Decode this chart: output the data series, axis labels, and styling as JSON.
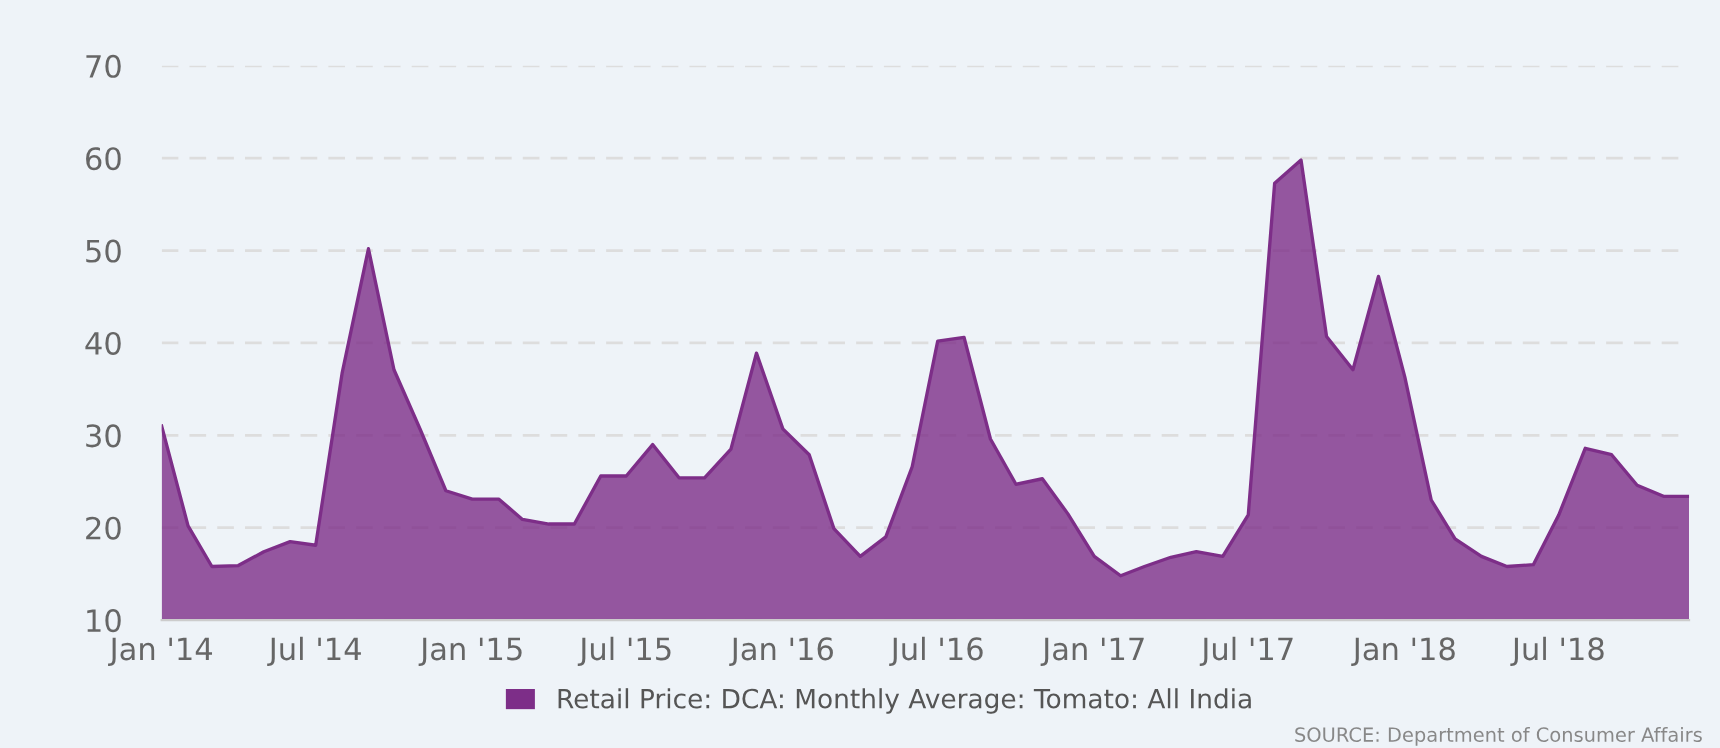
{
  "chart_data": {
    "type": "area",
    "x": [
      "2014-01",
      "2014-02",
      "2014-03",
      "2014-04",
      "2014-05",
      "2014-06",
      "2014-07",
      "2014-08",
      "2014-09",
      "2014-10",
      "2014-11",
      "2014-12",
      "2015-01",
      "2015-02",
      "2015-03",
      "2015-04",
      "2015-05",
      "2015-06",
      "2015-07",
      "2015-08",
      "2015-09",
      "2015-10",
      "2015-11",
      "2015-12",
      "2016-01",
      "2016-02",
      "2016-03",
      "2016-04",
      "2016-05",
      "2016-06",
      "2016-07",
      "2016-08",
      "2016-09",
      "2016-10",
      "2016-11",
      "2016-12",
      "2017-01",
      "2017-02",
      "2017-03",
      "2017-04",
      "2017-05",
      "2017-06",
      "2017-07",
      "2017-08",
      "2017-09",
      "2017-10",
      "2017-11",
      "2017-12",
      "2018-01",
      "2018-02",
      "2018-03",
      "2018-04",
      "2018-05",
      "2018-06",
      "2018-07",
      "2018-08",
      "2018-09",
      "2018-10",
      "2018-11",
      "2018-12"
    ],
    "series": [
      {
        "name": "Retail Price: DCA: Monthly Average: Tomato: All India",
        "color": "#7d2e88",
        "values": [
          31.0,
          20.2,
          15.8,
          15.9,
          17.4,
          18.5,
          18.1,
          36.7,
          50.2,
          37.1,
          30.6,
          24.0,
          23.1,
          23.1,
          20.9,
          20.4,
          20.4,
          25.6,
          25.6,
          29.0,
          25.4,
          25.4,
          28.5,
          38.9,
          30.7,
          27.9,
          19.9,
          16.9,
          19.0,
          26.6,
          40.2,
          40.6,
          29.6,
          24.7,
          25.3,
          21.5,
          16.9,
          14.8,
          15.8,
          16.8,
          17.4,
          16.9,
          21.4,
          57.3,
          59.8,
          40.7,
          37.1,
          47.2,
          36.3,
          23.0,
          18.8,
          16.9,
          15.8,
          16.0,
          21.4,
          28.6,
          27.9,
          24.6,
          23.4,
          23.4
        ]
      }
    ],
    "xlim": [
      "2014-01",
      "2018-12"
    ],
    "xticks": [
      {
        "value": "2014-01",
        "label": "Jan '14"
      },
      {
        "value": "2014-07",
        "label": "Jul '14"
      },
      {
        "value": "2015-01",
        "label": "Jan '15"
      },
      {
        "value": "2015-07",
        "label": "Jul '15"
      },
      {
        "value": "2016-01",
        "label": "Jan '16"
      },
      {
        "value": "2016-07",
        "label": "Jul '16"
      },
      {
        "value": "2017-01",
        "label": "Jan '17"
      },
      {
        "value": "2017-07",
        "label": "Jul '17"
      },
      {
        "value": "2018-01",
        "label": "Jan '18"
      },
      {
        "value": "2018-07",
        "label": "Jul '18"
      }
    ],
    "ylim": [
      10,
      70
    ],
    "yticks": [
      10,
      20,
      30,
      40,
      50,
      60,
      70
    ],
    "grid": "y",
    "legend": "bottom",
    "annotations": [
      "SOURCE: Department of Consumer Affairs"
    ]
  }
}
